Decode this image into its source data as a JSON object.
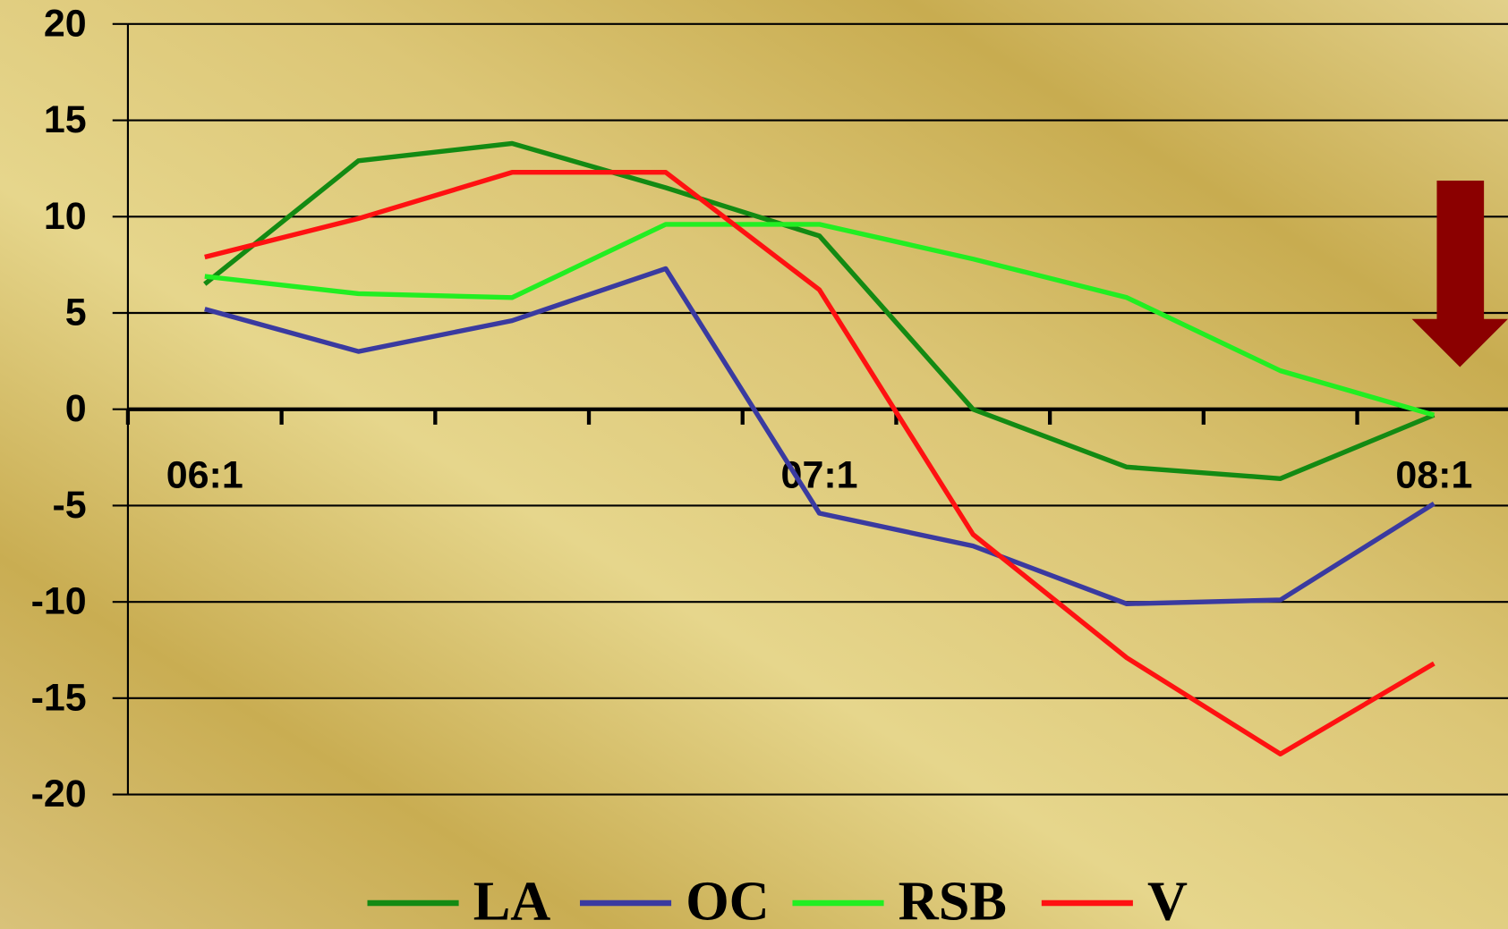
{
  "chart_data": {
    "type": "line",
    "categories": [
      "06:1",
      null,
      null,
      null,
      "07:1",
      null,
      null,
      null,
      "08:1"
    ],
    "series": [
      {
        "name": "LA",
        "color": "#138a13",
        "values": [
          6.5,
          12.9,
          13.8,
          11.5,
          9.0,
          0,
          -3.0,
          -3.6,
          -0.3
        ]
      },
      {
        "name": "OC",
        "color": "#3a3aa0",
        "values": [
          5.2,
          3.0,
          4.6,
          7.3,
          -5.4,
          -7.1,
          -10.1,
          -9.9,
          -4.9
        ]
      },
      {
        "name": "RSB",
        "color": "#22ee22",
        "values": [
          6.9,
          6.0,
          5.8,
          9.6,
          9.6,
          7.8,
          5.8,
          2.0,
          -0.3
        ]
      },
      {
        "name": "V",
        "color": "#ff1111",
        "values": [
          7.9,
          9.9,
          12.3,
          12.3,
          6.2,
          -6.5,
          -12.9,
          -17.9,
          -13.2
        ]
      }
    ],
    "ylim": [
      -20,
      20
    ],
    "yticks": [
      -20,
      -15,
      -10,
      -5,
      0,
      5,
      10,
      15,
      20
    ],
    "grid": true,
    "legend": "bottom"
  }
}
